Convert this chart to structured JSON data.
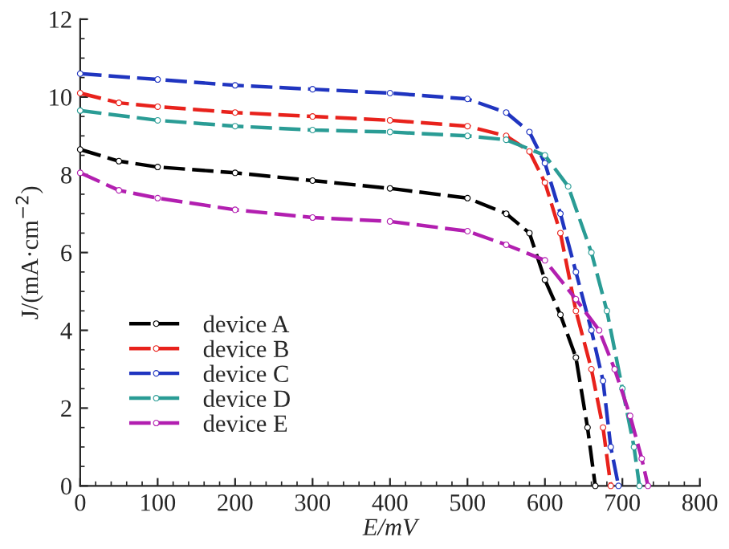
{
  "chart_data": {
    "type": "line",
    "xlabel": "E/mV",
    "ylabel": "J/(mA·cm$^{−2}$)",
    "xlim": [
      0,
      800
    ],
    "xticks": [
      0,
      100,
      200,
      300,
      400,
      500,
      600,
      700,
      800
    ],
    "ylim": [
      0,
      12
    ],
    "yticks": [
      0,
      2,
      4,
      6,
      8,
      10,
      12
    ],
    "grid": false,
    "legend": "lower left",
    "marker": "circle",
    "line_style": "dashed",
    "series": [
      {
        "name": "device A",
        "color": "#000000",
        "x": [
          0,
          50,
          100,
          200,
          300,
          400,
          500,
          550,
          580,
          600,
          620,
          640,
          655,
          665
        ],
        "values": [
          8.65,
          8.35,
          8.2,
          8.05,
          7.85,
          7.65,
          7.4,
          7.0,
          6.5,
          5.3,
          4.4,
          3.3,
          1.5,
          0
        ]
      },
      {
        "name": "device B",
        "color": "#e8221c",
        "x": [
          0,
          50,
          100,
          200,
          300,
          400,
          500,
          550,
          580,
          600,
          620,
          640,
          660,
          675,
          685
        ],
        "values": [
          10.1,
          9.85,
          9.75,
          9.6,
          9.5,
          9.4,
          9.25,
          9.0,
          8.6,
          7.8,
          6.5,
          4.5,
          3.0,
          1.5,
          0
        ]
      },
      {
        "name": "device C",
        "color": "#2035c0",
        "x": [
          0,
          100,
          200,
          300,
          400,
          500,
          550,
          580,
          600,
          620,
          640,
          660,
          675,
          685,
          695
        ],
        "values": [
          10.6,
          10.45,
          10.3,
          10.2,
          10.1,
          9.95,
          9.6,
          9.1,
          8.3,
          7.0,
          5.5,
          4.0,
          2.7,
          1.0,
          0
        ]
      },
      {
        "name": "device D",
        "color": "#2a9c95",
        "x": [
          0,
          100,
          200,
          300,
          400,
          500,
          550,
          600,
          630,
          660,
          680,
          700,
          715,
          722
        ],
        "values": [
          9.65,
          9.4,
          9.25,
          9.15,
          9.1,
          9.0,
          8.9,
          8.5,
          7.7,
          6.0,
          4.5,
          2.5,
          1.0,
          0
        ]
      },
      {
        "name": "device E",
        "color": "#b21fb0",
        "x": [
          0,
          50,
          100,
          200,
          300,
          400,
          500,
          550,
          600,
          640,
          670,
          690,
          710,
          725,
          733
        ],
        "values": [
          8.05,
          7.6,
          7.4,
          7.1,
          6.9,
          6.8,
          6.55,
          6.2,
          5.8,
          4.8,
          4.0,
          3.0,
          1.8,
          0.7,
          0
        ]
      }
    ]
  }
}
